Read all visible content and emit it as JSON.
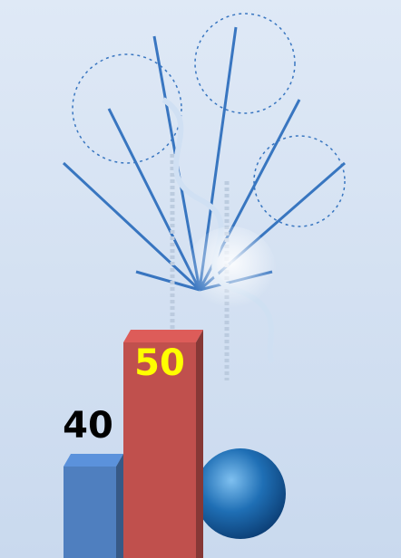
{
  "chart_data": {
    "type": "bar",
    "categories": [
      null,
      null
    ],
    "values": [
      40,
      50
    ],
    "colors": [
      "#4f7fbf",
      "#c0504d"
    ],
    "label_colors": [
      "#000000",
      "#ffff00"
    ]
  }
}
